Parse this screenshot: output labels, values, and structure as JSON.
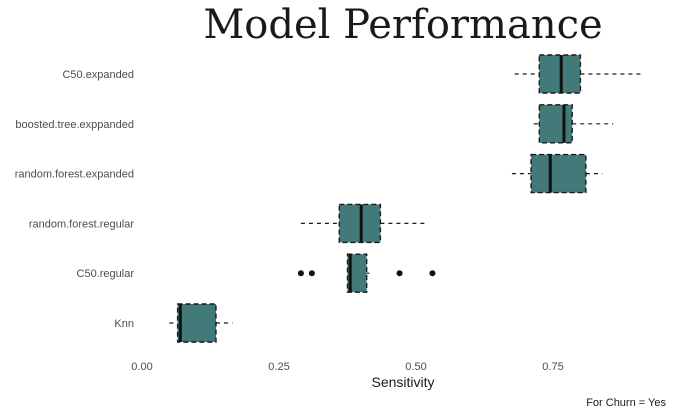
{
  "chart_data": {
    "type": "boxplot",
    "orientation": "horizontal",
    "title": "Model Performance",
    "xlabel": "Sensitivity",
    "ylabel": "",
    "caption": "For Churn = Yes",
    "xlim": [
      0.0,
      0.95
    ],
    "xticks": [
      0.0,
      0.25,
      0.5,
      0.75
    ],
    "xtick_labels": [
      "0.00",
      "0.25",
      "0.50",
      "0.75"
    ],
    "grid": false,
    "box_color": "#427a7a",
    "categories": [
      "C50.expanded",
      "boosted.tree.exppanded",
      "random.forest.expanded",
      "random.forest.regular",
      "C50.regular",
      "Knn"
    ],
    "boxes": [
      {
        "name": "C50.expanded",
        "min": 0.68,
        "q1": 0.725,
        "median": 0.765,
        "q3": 0.8,
        "max": 0.91,
        "outliers": []
      },
      {
        "name": "boosted.tree.exppanded",
        "min": 0.715,
        "q1": 0.725,
        "median": 0.77,
        "q3": 0.785,
        "max": 0.86,
        "outliers": []
      },
      {
        "name": "random.forest.expanded",
        "min": 0.675,
        "q1": 0.71,
        "median": 0.745,
        "q3": 0.81,
        "max": 0.84,
        "outliers": []
      },
      {
        "name": "random.forest.regular",
        "min": 0.29,
        "q1": 0.36,
        "median": 0.4,
        "q3": 0.435,
        "max": 0.52,
        "outliers": []
      },
      {
        "name": "C50.regular",
        "min": 0.375,
        "q1": 0.375,
        "median": 0.38,
        "q3": 0.41,
        "max": 0.415,
        "outliers": [
          0.29,
          0.31,
          0.47,
          0.53
        ]
      },
      {
        "name": "Knn",
        "min": 0.05,
        "q1": 0.065,
        "median": 0.07,
        "q3": 0.135,
        "max": 0.165,
        "outliers": []
      }
    ]
  }
}
